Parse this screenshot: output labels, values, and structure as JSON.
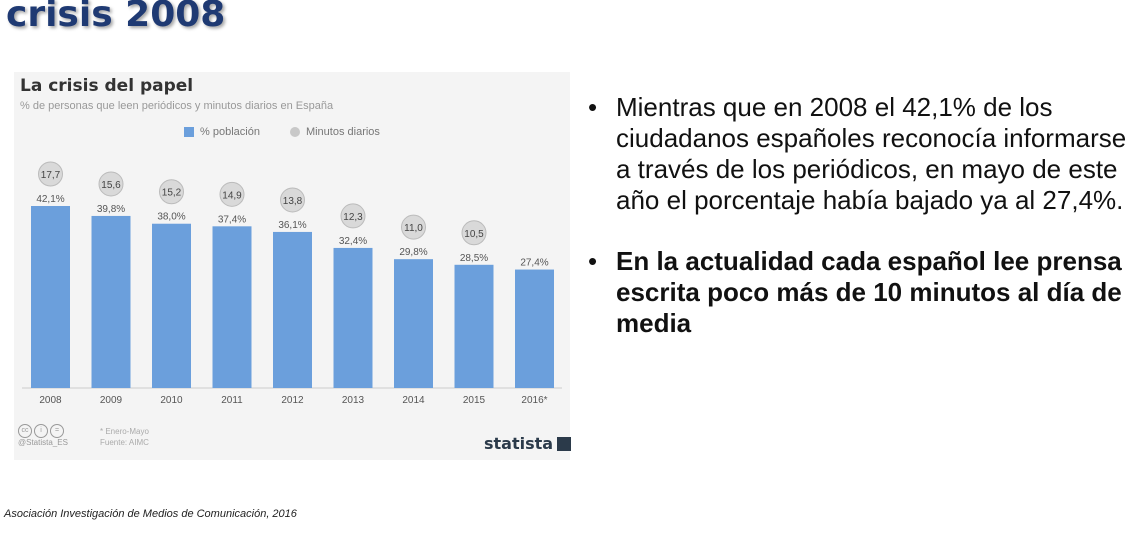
{
  "slide": {
    "title": "crisis 2008",
    "source": "Asociación Investigación de Medios de Comunicación, 2016"
  },
  "chart_card": {
    "title": "La crisis del papel",
    "subtitle": "% de personas que leen periódicos y minutos diarios en España",
    "legend": {
      "bar_label": "% población",
      "dot_label": "Minutos diarios"
    },
    "footnote": "* Enero-Mayo",
    "source_note": "Fuente: AIMC",
    "handle": "@Statista_ES",
    "brand": "statista"
  },
  "chart_data": {
    "type": "bar",
    "categories": [
      "2008",
      "2009",
      "2010",
      "2011",
      "2012",
      "2013",
      "2014",
      "2015",
      "2016*"
    ],
    "series": [
      {
        "name": "% población",
        "values": [
          42.1,
          39.8,
          38.0,
          37.4,
          36.1,
          32.4,
          29.8,
          28.5,
          27.4
        ],
        "labels": [
          "42,1%",
          "39,8%",
          "38,0%",
          "37,4%",
          "36,1%",
          "32,4%",
          "29,8%",
          "28,5%",
          "27,4%"
        ]
      },
      {
        "name": "Minutos diarios",
        "values": [
          17.7,
          15.6,
          15.2,
          14.9,
          13.8,
          12.3,
          11.0,
          10.5,
          null
        ],
        "labels": [
          "17,7",
          "15,6",
          "15,2",
          "14,9",
          "13,8",
          "12,3",
          "11,0",
          "10,5",
          ""
        ]
      }
    ],
    "ylim": [
      0,
      42.1
    ],
    "grid": false,
    "colors": {
      "bar": "#6b9fdc",
      "minutes_badge": "#d9d9d9"
    }
  },
  "bullets": [
    {
      "text": "Mientras que en 2008 el 42,1% de los ciudadanos españoles reconocía informarse a través de los periódicos, en mayo de este año el porcentaje había bajado ya al 27,4%.",
      "bold": false
    },
    {
      "text": "En la actualidad cada español lee prensa escrita poco más de 10 minutos al día de media",
      "bold": true
    }
  ],
  "bullet_symbol": "•"
}
